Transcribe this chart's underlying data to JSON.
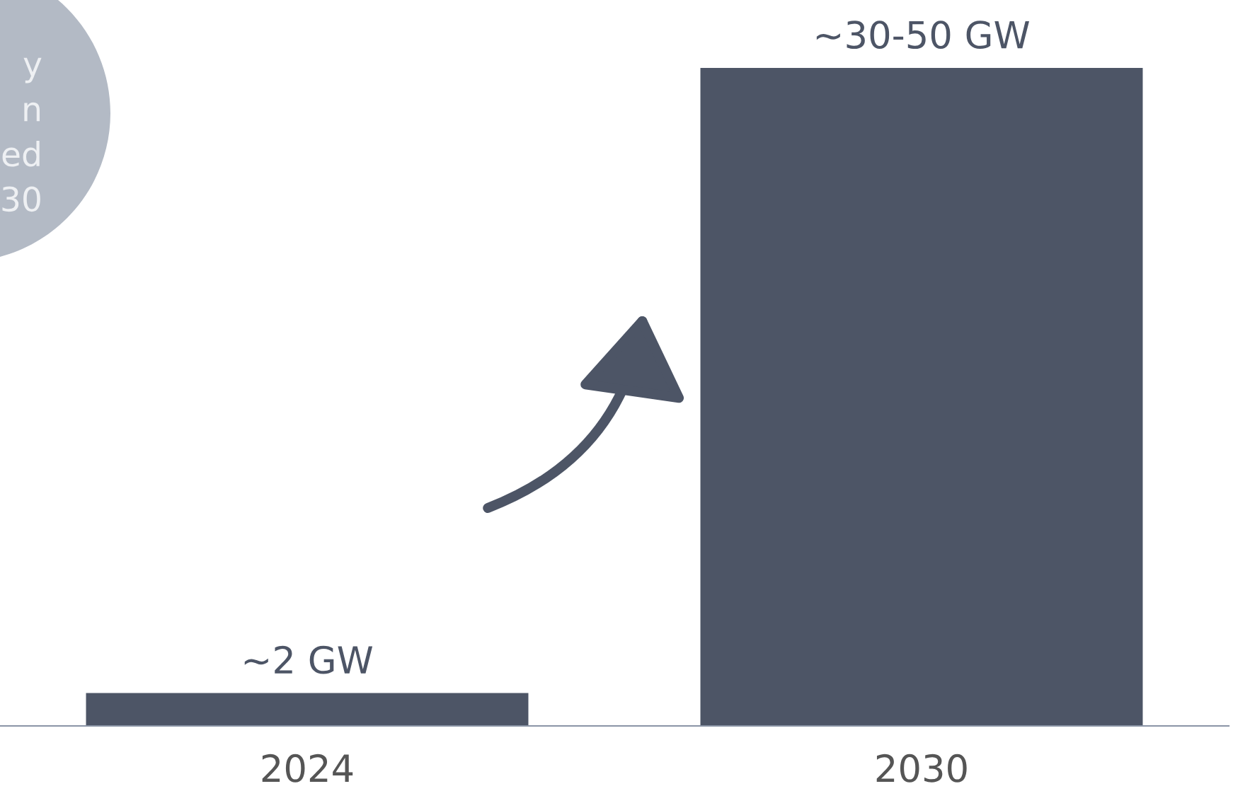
{
  "chart_data": {
    "type": "bar",
    "categories": [
      "2024",
      "2030"
    ],
    "values": [
      2,
      40
    ],
    "color": "#4d5566",
    "value_labels": [
      "~2 GW",
      "~30-50 GW"
    ],
    "annotations": [
      "y\nn\ned\n30"
    ],
    "grid": false,
    "legend": false
  }
}
